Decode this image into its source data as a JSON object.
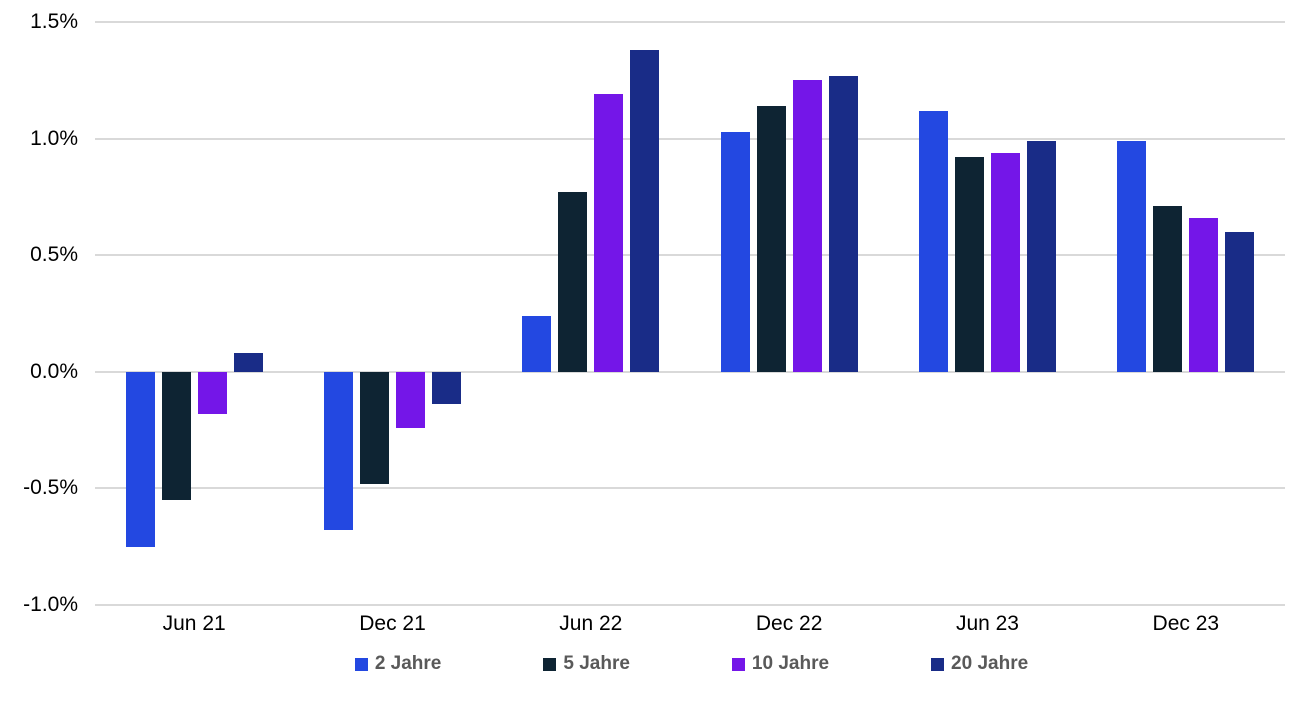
{
  "chart_data": {
    "type": "bar",
    "title": "",
    "categories": [
      "Jun 21",
      "Dec 21",
      "Jun 22",
      "Dec 22",
      "Jun 23",
      "Dec 23"
    ],
    "series": [
      {
        "name": "2 Jahre",
        "color": "#2348e1",
        "values": [
          -0.75,
          -0.68,
          0.24,
          1.03,
          1.12,
          0.99
        ]
      },
      {
        "name": "5 Jahre",
        "color": "#0e2433",
        "values": [
          -0.55,
          -0.48,
          0.77,
          1.14,
          0.92,
          0.71
        ]
      },
      {
        "name": "10 Jahre",
        "color": "#7416e8",
        "values": [
          -0.18,
          -0.24,
          1.19,
          1.25,
          0.94,
          0.66
        ]
      },
      {
        "name": "20 Jahre",
        "color": "#192c87",
        "values": [
          0.08,
          -0.14,
          1.38,
          1.27,
          0.99,
          0.6
        ]
      }
    ],
    "value_unit": "%",
    "xlabel": "",
    "ylabel": "",
    "ylim": [
      -1.0,
      1.5
    ],
    "y_ticks": [
      {
        "value": 1.5,
        "label": "1.5%"
      },
      {
        "value": 1.0,
        "label": "1.0%"
      },
      {
        "value": 0.5,
        "label": "0.5%"
      },
      {
        "value": 0.0,
        "label": "0.0%"
      },
      {
        "value": -0.5,
        "label": "-0.5%"
      },
      {
        "value": -1.0,
        "label": "-1.0%"
      }
    ],
    "grid": "horizontal",
    "gridline_color": "#d9d9d9",
    "axis_text_color": "#000000",
    "legend_text_color": "#595959",
    "legend_position": "bottom"
  }
}
